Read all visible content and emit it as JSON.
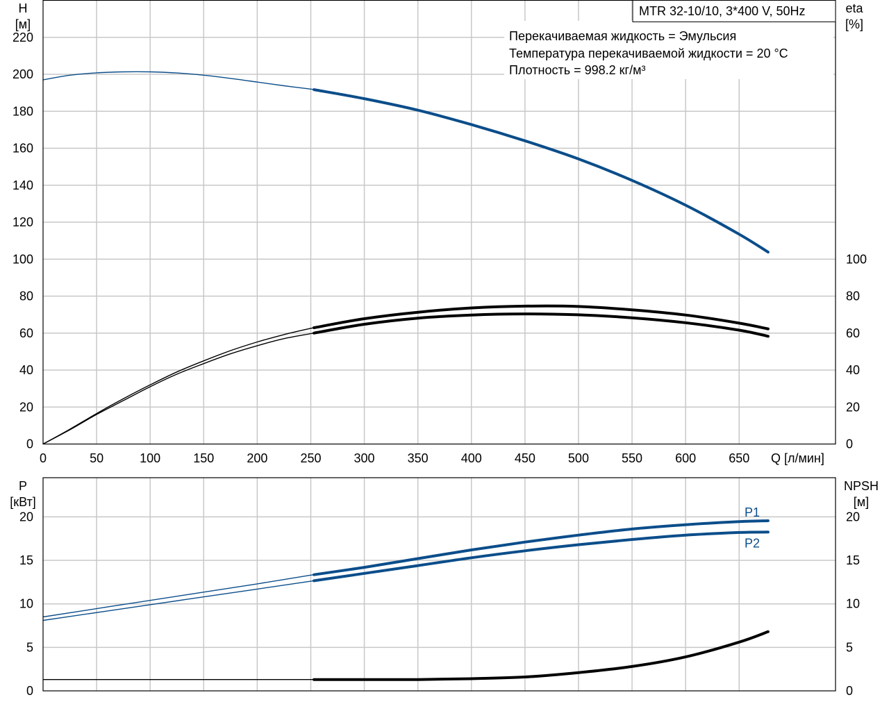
{
  "title_box": "MTR 32-10/10, 3*400 V, 50Hz",
  "info_lines": [
    "Перекачиваемая жидкость = Эмульсия",
    "Температура перекачиваемой жидкости = 20 °C",
    "Плотность = 998.2 кг/м³"
  ],
  "top_chart": {
    "left_axis": {
      "name": "H",
      "unit": "[м]"
    },
    "right_axis": {
      "name": "eta",
      "unit": "[%]"
    },
    "x_axis_label": "Q [л/мин]"
  },
  "bottom_chart": {
    "left_axis": {
      "name": "P",
      "unit": "[кВт]"
    },
    "right_axis": {
      "name": "NPSH",
      "unit": "[м]"
    }
  },
  "colors": {
    "blue": "#0b4d8a",
    "black": "#000000",
    "grid": "#c8c8c8"
  },
  "chart_data": [
    {
      "type": "line",
      "x_ticks": [
        0,
        50,
        100,
        150,
        200,
        250,
        300,
        350,
        400,
        450,
        500,
        550,
        600,
        650
      ],
      "xlim": [
        0,
        740
      ],
      "ylim_left": [
        0,
        240
      ],
      "y_ticks_left": [
        0,
        20,
        40,
        60,
        80,
        100,
        120,
        140,
        160,
        180,
        200,
        220
      ],
      "ylim_right": [
        0,
        240
      ],
      "y_ticks_right": [
        0,
        20,
        40,
        60,
        80,
        100
      ],
      "grid": true,
      "series": [
        {
          "axis": "left",
          "color": "#0b4d8a",
          "x": [
            0,
            25,
            50,
            75,
            100,
            125,
            150,
            175,
            200,
            225,
            250,
            300,
            350,
            400,
            450,
            500,
            550,
            600,
            650,
            677
          ],
          "y": [
            197,
            199.5,
            200.8,
            201.3,
            201.3,
            200.7,
            199.5,
            197.8,
            195.8,
            193.8,
            192.0,
            186.8,
            180.6,
            172.8,
            164.0,
            154.2,
            142.6,
            129.2,
            113.5,
            103.8
          ]
        },
        {
          "axis": "right",
          "color": "#000000",
          "x": [
            0,
            25,
            50,
            75,
            100,
            125,
            150,
            175,
            200,
            225,
            250,
            300,
            350,
            400,
            450,
            500,
            550,
            600,
            650,
            677
          ],
          "y": [
            0,
            8,
            16.5,
            24.5,
            32,
            39,
            45,
            50.5,
            55.2,
            59.2,
            62.6,
            67.8,
            71.3,
            73.6,
            74.6,
            74.4,
            72.6,
            69.8,
            65.4,
            62.3
          ]
        },
        {
          "axis": "right",
          "color": "#000000",
          "x": [
            0,
            25,
            50,
            75,
            100,
            125,
            150,
            175,
            200,
            225,
            250,
            300,
            350,
            400,
            450,
            500,
            550,
            600,
            650,
            677
          ],
          "y": [
            0,
            7.7,
            16,
            23.5,
            31,
            37.8,
            43.5,
            48.8,
            53.2,
            57,
            59.7,
            64.8,
            68.1,
            69.8,
            70.4,
            69.9,
            68.3,
            65.6,
            61.6,
            58.3
          ]
        }
      ]
    },
    {
      "type": "line",
      "x_ticks": [
        0,
        50,
        100,
        150,
        200,
        250,
        300,
        350,
        400,
        450,
        500,
        550,
        600,
        650
      ],
      "xlim": [
        0,
        740
      ],
      "ylim_left": [
        0,
        24.5
      ],
      "y_ticks_left": [
        0,
        5,
        10,
        15,
        20
      ],
      "ylim_right": [
        0,
        24.5
      ],
      "y_ticks_right": [
        0,
        5,
        10,
        15,
        20
      ],
      "grid": true,
      "series": [
        {
          "name": "P1",
          "axis": "left",
          "color": "#0b4d8a",
          "x": [
            0,
            100,
            200,
            250,
            300,
            350,
            400,
            450,
            500,
            550,
            600,
            650,
            677
          ],
          "y": [
            8.5,
            10.4,
            12.3,
            13.3,
            14.2,
            15.2,
            16.2,
            17.1,
            17.9,
            18.6,
            19.1,
            19.45,
            19.55
          ]
        },
        {
          "name": "P2",
          "axis": "left",
          "color": "#0b4d8a",
          "x": [
            0,
            100,
            200,
            250,
            300,
            350,
            400,
            450,
            500,
            550,
            600,
            650,
            677
          ],
          "y": [
            8.1,
            9.9,
            11.7,
            12.6,
            13.5,
            14.4,
            15.3,
            16.1,
            16.8,
            17.4,
            17.9,
            18.2,
            18.25
          ]
        },
        {
          "axis": "right",
          "color": "#000000",
          "x": [
            0,
            100,
            200,
            250,
            300,
            350,
            400,
            450,
            500,
            550,
            600,
            650,
            677
          ],
          "y": [
            1.3,
            1.3,
            1.3,
            1.3,
            1.3,
            1.3,
            1.4,
            1.6,
            2.1,
            2.8,
            3.9,
            5.6,
            6.8
          ]
        }
      ]
    }
  ]
}
